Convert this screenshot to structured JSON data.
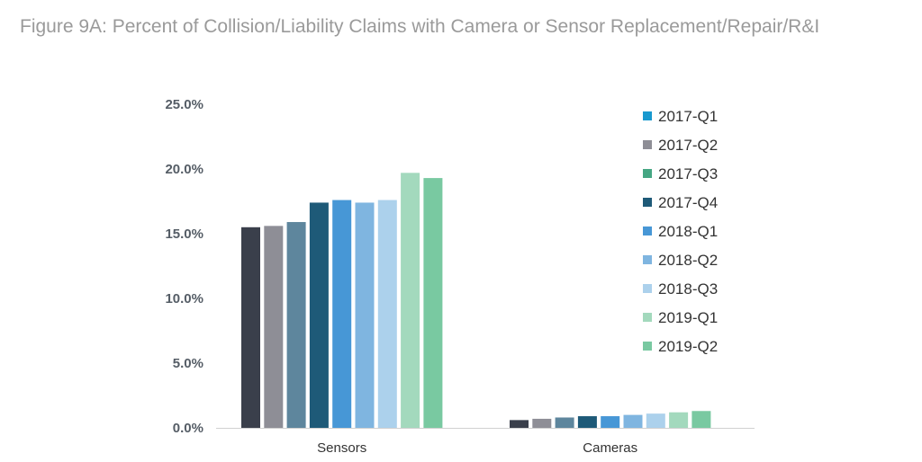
{
  "chart_data": {
    "type": "bar",
    "title": "Figure 9A: Percent of Collision/Liability Claims with Camera or Sensor Replacement/Repair/R&I",
    "categories": [
      "Sensors",
      "Cameras"
    ],
    "ylim": [
      0,
      25
    ],
    "yticks": [
      "0.0%",
      "5.0%",
      "10.0%",
      "15.0%",
      "20.0%",
      "25.0%"
    ],
    "grid": false,
    "legend_position": "right",
    "series": [
      {
        "name": "2017-Q1",
        "color": "#3a3f4b",
        "values": [
          15.5,
          0.6
        ],
        "legend_color": "#1899cf"
      },
      {
        "name": "2017-Q2",
        "color": "#8e8e96",
        "values": [
          15.6,
          0.7
        ]
      },
      {
        "name": "2017-Q3",
        "color": "#5e869d",
        "values": [
          15.9,
          0.8
        ],
        "legend_color": "#45a683"
      },
      {
        "name": "2017-Q4",
        "color": "#1e5a78",
        "values": [
          17.4,
          0.9
        ]
      },
      {
        "name": "2018-Q1",
        "color": "#4797d6",
        "values": [
          17.6,
          0.9
        ]
      },
      {
        "name": "2018-Q2",
        "color": "#7fb5e0",
        "values": [
          17.4,
          1.0
        ]
      },
      {
        "name": "2018-Q3",
        "color": "#acd1ec",
        "values": [
          17.6,
          1.1
        ]
      },
      {
        "name": "2019-Q1",
        "color": "#a3d9bd",
        "values": [
          19.7,
          1.2
        ]
      },
      {
        "name": "2019-Q2",
        "color": "#79c9a1",
        "values": [
          19.3,
          1.3
        ]
      }
    ]
  }
}
